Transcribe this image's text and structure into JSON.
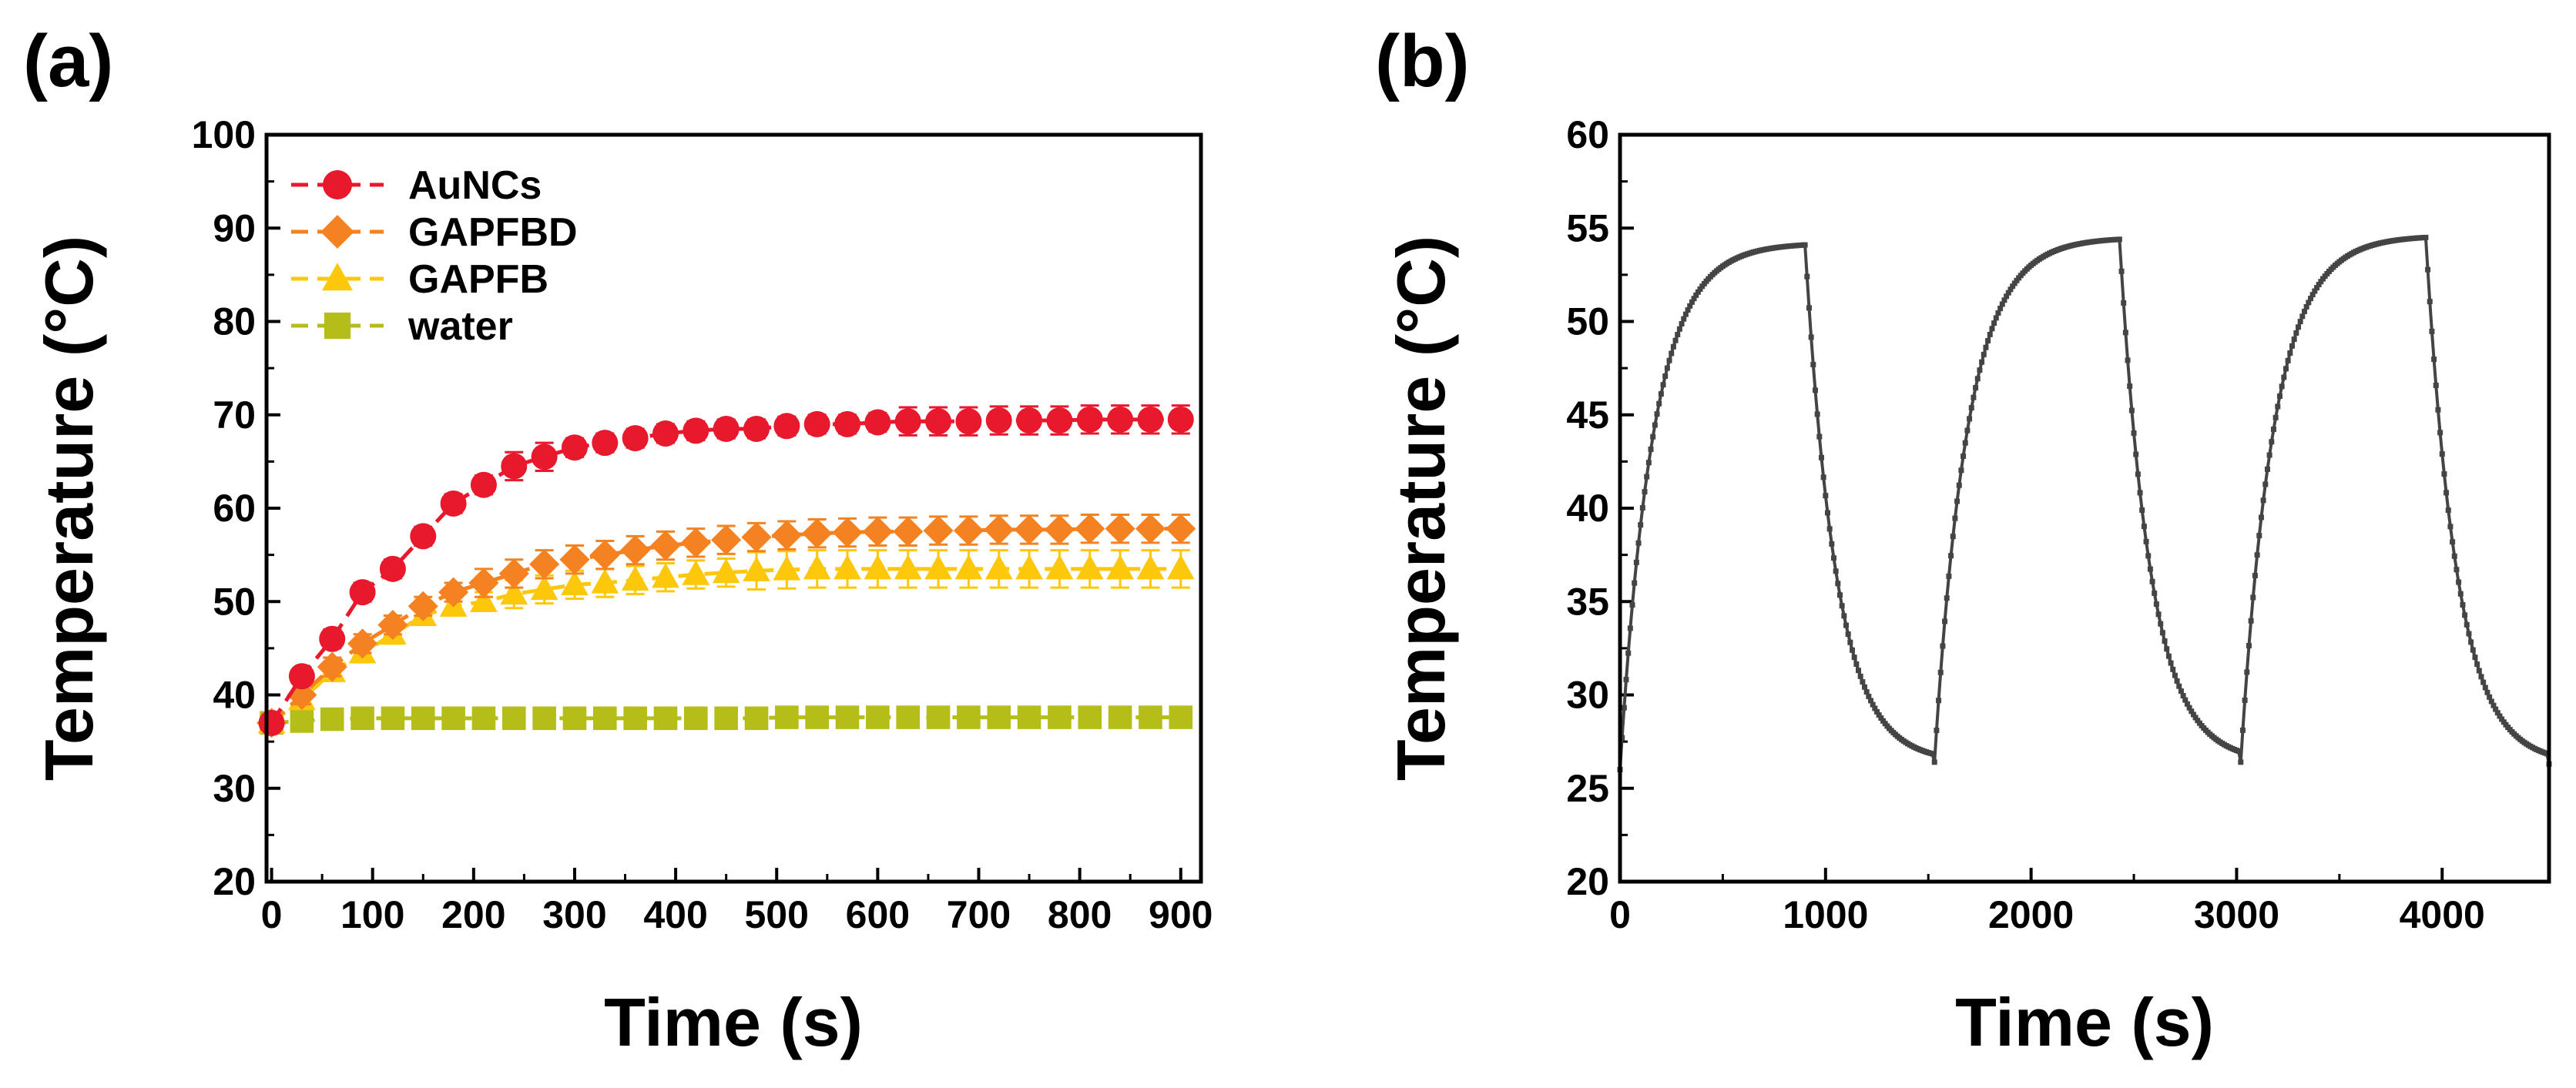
{
  "chart_data": [
    {
      "panel_label": "(a)",
      "type": "line",
      "xlabel": "Time (s)",
      "ylabel": "Temperature (°C)",
      "xlim": [
        -5,
        920
      ],
      "ylim": [
        20,
        100
      ],
      "xticks": [
        0,
        100,
        200,
        300,
        400,
        500,
        600,
        700,
        800,
        900
      ],
      "yticks": [
        20,
        30,
        40,
        50,
        60,
        70,
        80,
        90,
        100
      ],
      "xtick_labels": [
        "0",
        "100",
        "200",
        "300",
        "400",
        "500",
        "600",
        "700",
        "800",
        "900"
      ],
      "ytick_labels": [
        "20",
        "30",
        "40",
        "50",
        "60",
        "70",
        "80",
        "90",
        "100"
      ],
      "legend_position": "top-left",
      "x": [
        0,
        30,
        60,
        90,
        120,
        150,
        180,
        210,
        240,
        270,
        300,
        330,
        360,
        390,
        420,
        450,
        480,
        510,
        540,
        570,
        600,
        630,
        660,
        690,
        720,
        750,
        780,
        810,
        840,
        870,
        900
      ],
      "series": [
        {
          "name": "AuNCs",
          "color": "#e8192c",
          "marker": "circle",
          "values": [
            37,
            42,
            46,
            51,
            53.5,
            57,
            60.5,
            62.5,
            64.5,
            65.5,
            66.5,
            67,
            67.5,
            68,
            68.3,
            68.5,
            68.5,
            68.8,
            69,
            69,
            69.2,
            69.3,
            69.3,
            69.3,
            69.4,
            69.4,
            69.4,
            69.5,
            69.5,
            69.5,
            69.5
          ],
          "errors": [
            0.5,
            0.8,
            1,
            1,
            1,
            1,
            1,
            1,
            1.5,
            1.5,
            1,
            1,
            1,
            1,
            1,
            1,
            1,
            1,
            1,
            1,
            1,
            1.5,
            1.5,
            1.5,
            1.5,
            1.5,
            1.5,
            1.5,
            1.5,
            1.5,
            1.5
          ]
        },
        {
          "name": "GAPFBD",
          "color": "#f58220",
          "marker": "diamond",
          "values": [
            37,
            40,
            43,
            45.5,
            47.5,
            49.5,
            51,
            52,
            53,
            54,
            54.5,
            55,
            55.5,
            56,
            56.3,
            56.6,
            56.9,
            57.1,
            57.3,
            57.4,
            57.5,
            57.5,
            57.6,
            57.6,
            57.7,
            57.7,
            57.7,
            57.8,
            57.8,
            57.8,
            57.8
          ],
          "errors": [
            0.5,
            1,
            1,
            1,
            1,
            1,
            1,
            1.5,
            1.5,
            1.5,
            1.5,
            1.5,
            1.5,
            1.5,
            1.5,
            1.5,
            1.5,
            1.5,
            1.5,
            1.5,
            1.5,
            1.5,
            1.5,
            1.5,
            1.5,
            1.5,
            1.5,
            1.5,
            1.5,
            1.5,
            1.5
          ]
        },
        {
          "name": "GAPFB",
          "color": "#fdc70c",
          "marker": "triangle",
          "values": [
            37,
            39.5,
            42.5,
            44.5,
            46.5,
            48.5,
            49.5,
            50,
            50.8,
            51.3,
            51.8,
            52,
            52.3,
            52.6,
            52.9,
            53.1,
            53.3,
            53.4,
            53.5,
            53.5,
            53.5,
            53.5,
            53.5,
            53.5,
            53.5,
            53.5,
            53.5,
            53.5,
            53.5,
            53.5,
            53.5
          ],
          "errors": [
            0.5,
            1,
            1,
            1,
            1,
            1,
            1,
            1,
            1.5,
            1.5,
            1.5,
            1.5,
            1.5,
            1.5,
            1.5,
            1.5,
            2,
            2,
            2,
            2,
            2,
            2,
            2,
            2,
            2,
            2,
            2,
            2,
            2,
            2,
            2
          ]
        },
        {
          "name": "water",
          "color": "#b5bd18",
          "marker": "square",
          "values": [
            37,
            37.2,
            37.4,
            37.5,
            37.5,
            37.5,
            37.5,
            37.5,
            37.5,
            37.5,
            37.5,
            37.5,
            37.5,
            37.5,
            37.5,
            37.5,
            37.5,
            37.6,
            37.6,
            37.6,
            37.6,
            37.6,
            37.6,
            37.6,
            37.6,
            37.6,
            37.6,
            37.6,
            37.6,
            37.6,
            37.6
          ],
          "errors": [
            0.3,
            0.3,
            0.3,
            0.3,
            0.3,
            0.3,
            0.3,
            0.3,
            0.3,
            0.3,
            0.3,
            0.3,
            0.3,
            0.3,
            0.3,
            0.3,
            0.3,
            0.3,
            0.3,
            0.3,
            0.3,
            0.3,
            0.3,
            0.3,
            0.3,
            0.3,
            0.3,
            0.3,
            0.3,
            0.3,
            0.3
          ]
        }
      ]
    },
    {
      "panel_label": "(b)",
      "type": "line",
      "xlabel": "Time (s)",
      "ylabel": "Temperature (°C)",
      "xlim": [
        0,
        4520
      ],
      "ylim": [
        20,
        60
      ],
      "xticks": [
        0,
        1000,
        2000,
        3000,
        4000
      ],
      "yticks": [
        20,
        25,
        30,
        35,
        40,
        45,
        50,
        55,
        60
      ],
      "xtick_labels": [
        "0",
        "1000",
        "2000",
        "3000",
        "4000"
      ],
      "ytick_labels": [
        "20",
        "25",
        "30",
        "35",
        "40",
        "45",
        "50",
        "55",
        "60"
      ],
      "line_color": "#444444",
      "cycles": [
        {
          "start": 0,
          "laser_off": 900,
          "end": 1530,
          "start_temp": 26,
          "peak_temp": 54.2,
          "base_temp": 26.4
        },
        {
          "start": 1530,
          "laser_off": 2430,
          "end": 3020,
          "start_temp": 26.4,
          "peak_temp": 54.5,
          "base_temp": 26.4
        },
        {
          "start": 3020,
          "laser_off": 3920,
          "end": 4520,
          "start_temp": 26.4,
          "peak_temp": 54.6,
          "base_temp": 26.3
        }
      ],
      "sample_interval_s": 10
    }
  ]
}
